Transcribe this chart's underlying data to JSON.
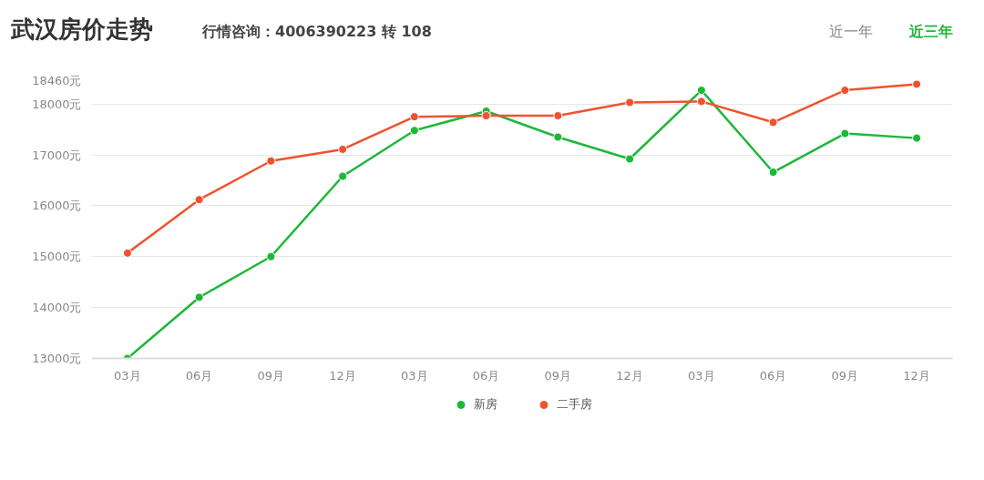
{
  "chart_data": {
    "type": "line",
    "title": "武汉房价走势",
    "annotations": [
      "行情咨询：4006390223 转 108",
      "近一年",
      "近三年"
    ],
    "categories": [
      "03月",
      "06月",
      "09月",
      "12月",
      "03月",
      "06月",
      "09月",
      "12月",
      "03月",
      "06月",
      "09月",
      "12月"
    ],
    "series": [
      {
        "name": "新房",
        "color": "#1db83a",
        "values": [
          13000,
          14200,
          15000,
          16580,
          17480,
          17860,
          17350,
          16920,
          18270,
          16660,
          17420,
          17330
        ]
      },
      {
        "name": "二手房",
        "color": "#f0522e",
        "values": [
          15070,
          16120,
          16880,
          17110,
          17750,
          17770,
          17770,
          18030,
          18050,
          17640,
          18270,
          18390
        ]
      }
    ],
    "ylim": [
      13000,
      18460
    ],
    "yticks": [
      {
        "value": 13000,
        "label": "13000元"
      },
      {
        "value": 14000,
        "label": "14000元"
      },
      {
        "value": 15000,
        "label": "15000元"
      },
      {
        "value": 16000,
        "label": "16000元"
      },
      {
        "value": 17000,
        "label": "17000元"
      },
      {
        "value": 18000,
        "label": "18000元"
      },
      {
        "value": 18460,
        "label": "18460元"
      }
    ],
    "grid": "y",
    "legend": "bottom",
    "marker": "circle",
    "line_style": "solid"
  }
}
